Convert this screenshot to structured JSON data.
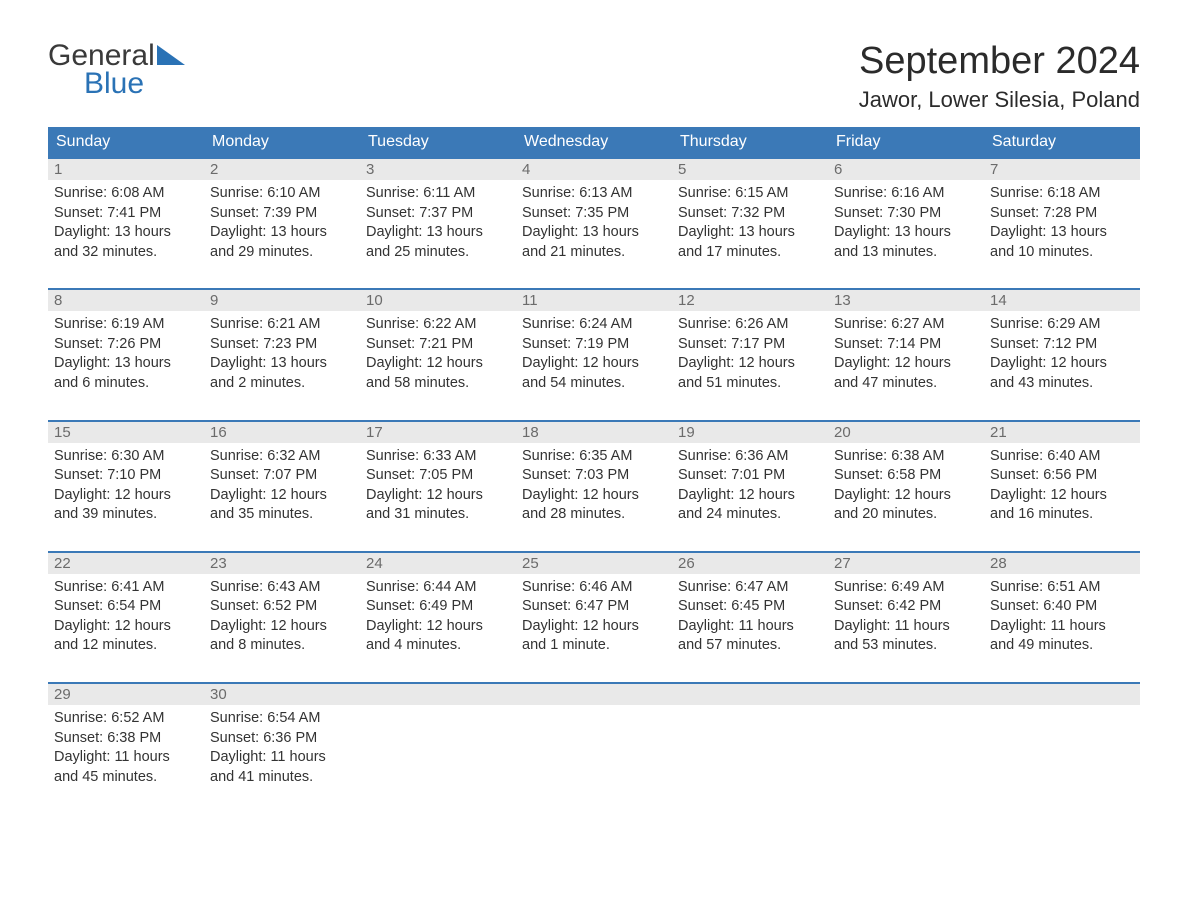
{
  "brand": {
    "word1": "General",
    "word2": "Blue"
  },
  "title": "September 2024",
  "location": "Jawor, Lower Silesia, Poland",
  "colors": {
    "header_bg": "#3b79b7",
    "header_text": "#ffffff",
    "rule": "#3b79b7",
    "daynum_bg": "#e9e9e9",
    "daynum_text": "#6b6b6b",
    "body_text": "#333333",
    "logo_blue": "#2a72b5"
  },
  "typography": {
    "title_size": 38,
    "location_size": 22,
    "dow_size": 16,
    "cell_size": 14.5
  },
  "layout": {
    "columns": 7,
    "weeks": 5,
    "first_dow": "Sunday"
  },
  "dow": [
    "Sunday",
    "Monday",
    "Tuesday",
    "Wednesday",
    "Thursday",
    "Friday",
    "Saturday"
  ],
  "labels": {
    "sunrise": "Sunrise:",
    "sunset": "Sunset:",
    "daylight": "Daylight:"
  },
  "days": [
    {
      "n": 1,
      "sunrise": "6:08 AM",
      "sunset": "7:41 PM",
      "daylight": "13 hours and 32 minutes."
    },
    {
      "n": 2,
      "sunrise": "6:10 AM",
      "sunset": "7:39 PM",
      "daylight": "13 hours and 29 minutes."
    },
    {
      "n": 3,
      "sunrise": "6:11 AM",
      "sunset": "7:37 PM",
      "daylight": "13 hours and 25 minutes."
    },
    {
      "n": 4,
      "sunrise": "6:13 AM",
      "sunset": "7:35 PM",
      "daylight": "13 hours and 21 minutes."
    },
    {
      "n": 5,
      "sunrise": "6:15 AM",
      "sunset": "7:32 PM",
      "daylight": "13 hours and 17 minutes."
    },
    {
      "n": 6,
      "sunrise": "6:16 AM",
      "sunset": "7:30 PM",
      "daylight": "13 hours and 13 minutes."
    },
    {
      "n": 7,
      "sunrise": "6:18 AM",
      "sunset": "7:28 PM",
      "daylight": "13 hours and 10 minutes."
    },
    {
      "n": 8,
      "sunrise": "6:19 AM",
      "sunset": "7:26 PM",
      "daylight": "13 hours and 6 minutes."
    },
    {
      "n": 9,
      "sunrise": "6:21 AM",
      "sunset": "7:23 PM",
      "daylight": "13 hours and 2 minutes."
    },
    {
      "n": 10,
      "sunrise": "6:22 AM",
      "sunset": "7:21 PM",
      "daylight": "12 hours and 58 minutes."
    },
    {
      "n": 11,
      "sunrise": "6:24 AM",
      "sunset": "7:19 PM",
      "daylight": "12 hours and 54 minutes."
    },
    {
      "n": 12,
      "sunrise": "6:26 AM",
      "sunset": "7:17 PM",
      "daylight": "12 hours and 51 minutes."
    },
    {
      "n": 13,
      "sunrise": "6:27 AM",
      "sunset": "7:14 PM",
      "daylight": "12 hours and 47 minutes."
    },
    {
      "n": 14,
      "sunrise": "6:29 AM",
      "sunset": "7:12 PM",
      "daylight": "12 hours and 43 minutes."
    },
    {
      "n": 15,
      "sunrise": "6:30 AM",
      "sunset": "7:10 PM",
      "daylight": "12 hours and 39 minutes."
    },
    {
      "n": 16,
      "sunrise": "6:32 AM",
      "sunset": "7:07 PM",
      "daylight": "12 hours and 35 minutes."
    },
    {
      "n": 17,
      "sunrise": "6:33 AM",
      "sunset": "7:05 PM",
      "daylight": "12 hours and 31 minutes."
    },
    {
      "n": 18,
      "sunrise": "6:35 AM",
      "sunset": "7:03 PM",
      "daylight": "12 hours and 28 minutes."
    },
    {
      "n": 19,
      "sunrise": "6:36 AM",
      "sunset": "7:01 PM",
      "daylight": "12 hours and 24 minutes."
    },
    {
      "n": 20,
      "sunrise": "6:38 AM",
      "sunset": "6:58 PM",
      "daylight": "12 hours and 20 minutes."
    },
    {
      "n": 21,
      "sunrise": "6:40 AM",
      "sunset": "6:56 PM",
      "daylight": "12 hours and 16 minutes."
    },
    {
      "n": 22,
      "sunrise": "6:41 AM",
      "sunset": "6:54 PM",
      "daylight": "12 hours and 12 minutes."
    },
    {
      "n": 23,
      "sunrise": "6:43 AM",
      "sunset": "6:52 PM",
      "daylight": "12 hours and 8 minutes."
    },
    {
      "n": 24,
      "sunrise": "6:44 AM",
      "sunset": "6:49 PM",
      "daylight": "12 hours and 4 minutes."
    },
    {
      "n": 25,
      "sunrise": "6:46 AM",
      "sunset": "6:47 PM",
      "daylight": "12 hours and 1 minute."
    },
    {
      "n": 26,
      "sunrise": "6:47 AM",
      "sunset": "6:45 PM",
      "daylight": "11 hours and 57 minutes."
    },
    {
      "n": 27,
      "sunrise": "6:49 AM",
      "sunset": "6:42 PM",
      "daylight": "11 hours and 53 minutes."
    },
    {
      "n": 28,
      "sunrise": "6:51 AM",
      "sunset": "6:40 PM",
      "daylight": "11 hours and 49 minutes."
    },
    {
      "n": 29,
      "sunrise": "6:52 AM",
      "sunset": "6:38 PM",
      "daylight": "11 hours and 45 minutes."
    },
    {
      "n": 30,
      "sunrise": "6:54 AM",
      "sunset": "6:36 PM",
      "daylight": "11 hours and 41 minutes."
    }
  ]
}
